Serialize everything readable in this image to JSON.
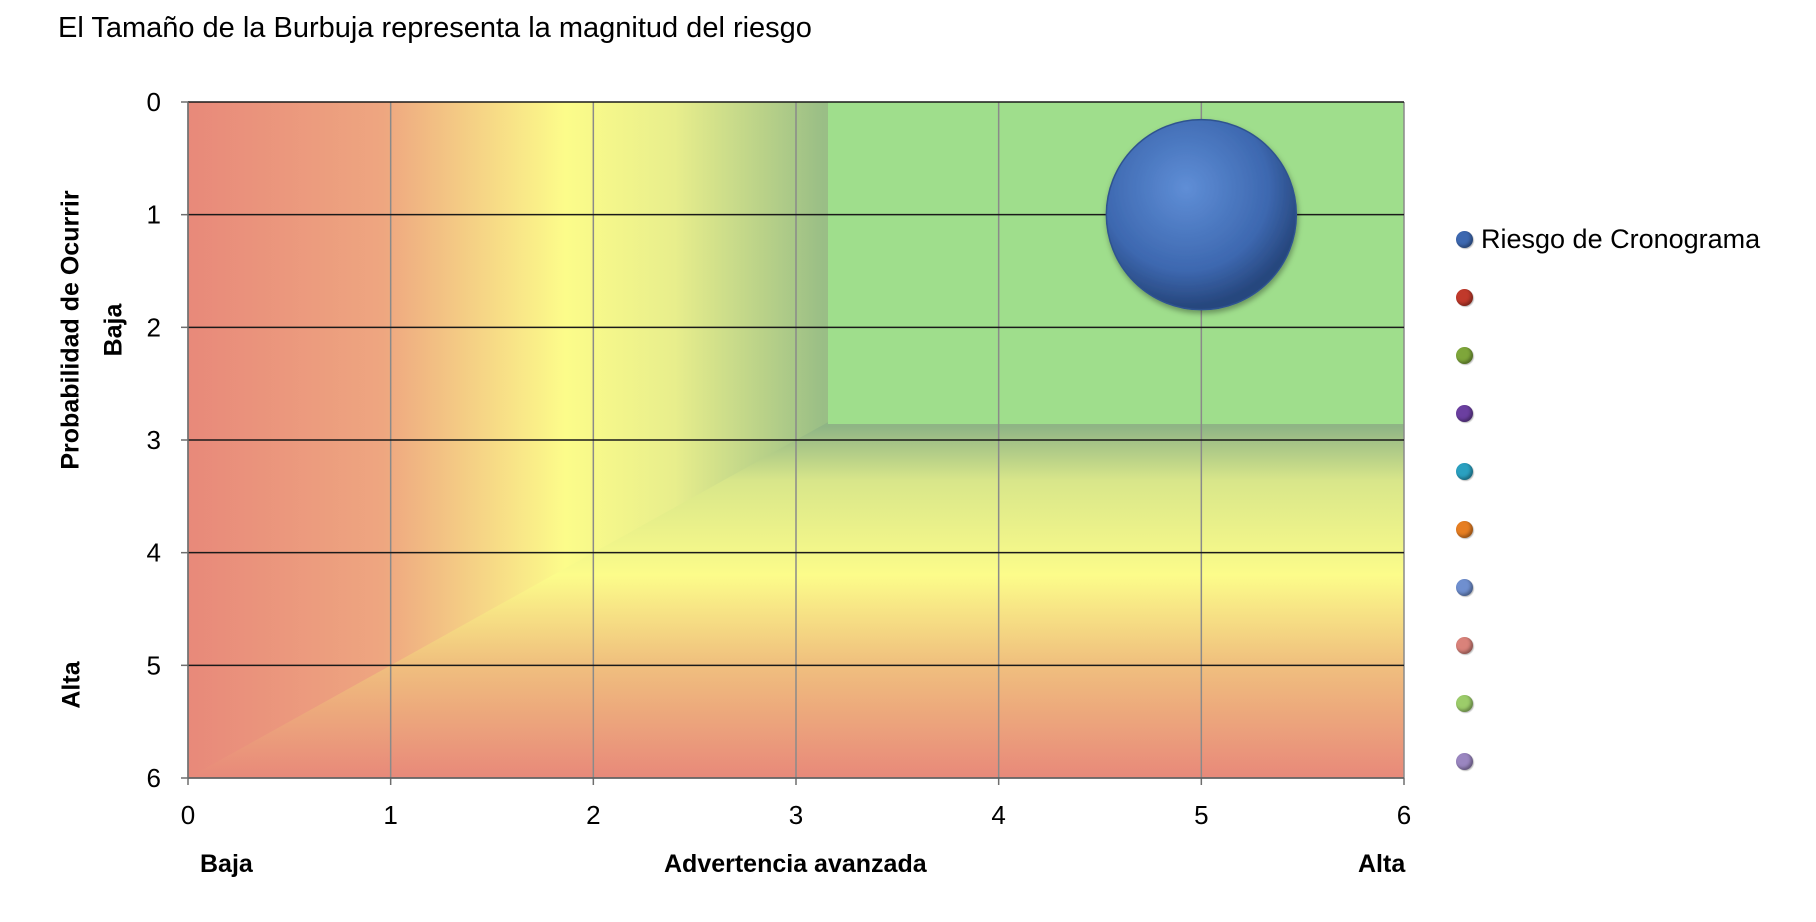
{
  "chart_data": {
    "type": "bubble",
    "title": "El Tamaño de la Burbuja representa la magnitud del riesgo",
    "xlabel": "Advertencia avanzada",
    "x_low_label": "Baja",
    "x_high_label": "Alta",
    "ylabel": "Probabilidad de Ocurrir",
    "y_low_label": "Baja",
    "y_high_label": "Alta",
    "xlim": [
      0,
      6
    ],
    "ylim": [
      0,
      6
    ],
    "y_reversed": true,
    "x_ticks": [
      "0",
      "1",
      "2",
      "3",
      "4",
      "5",
      "6"
    ],
    "y_ticks": [
      "0",
      "1",
      "2",
      "3",
      "4",
      "5",
      "6"
    ],
    "grid": true,
    "legend_position": "right",
    "background_zones": [
      {
        "name": "high-risk",
        "color": "#e8897a"
      },
      {
        "name": "medium-risk",
        "color": "#fcfc8a"
      },
      {
        "name": "low-risk",
        "color": "#9fde8c"
      }
    ],
    "series": [
      {
        "name": "Riesgo de Cronograma",
        "color": "#3d68b0",
        "points": [
          {
            "x": 5,
            "y": 1,
            "size": 1
          }
        ]
      },
      {
        "name": "",
        "color": "#c0392b",
        "points": []
      },
      {
        "name": "",
        "color": "#7ea63a",
        "points": []
      },
      {
        "name": "",
        "color": "#6b3fa0",
        "points": []
      },
      {
        "name": "",
        "color": "#2aa0c0",
        "points": []
      },
      {
        "name": "",
        "color": "#e67e22",
        "points": []
      },
      {
        "name": "",
        "color": "#6f8fcf",
        "points": []
      },
      {
        "name": "",
        "color": "#d9827a",
        "points": []
      },
      {
        "name": "",
        "color": "#9ccc6a",
        "points": []
      },
      {
        "name": "",
        "color": "#9a86c0",
        "points": []
      }
    ]
  }
}
